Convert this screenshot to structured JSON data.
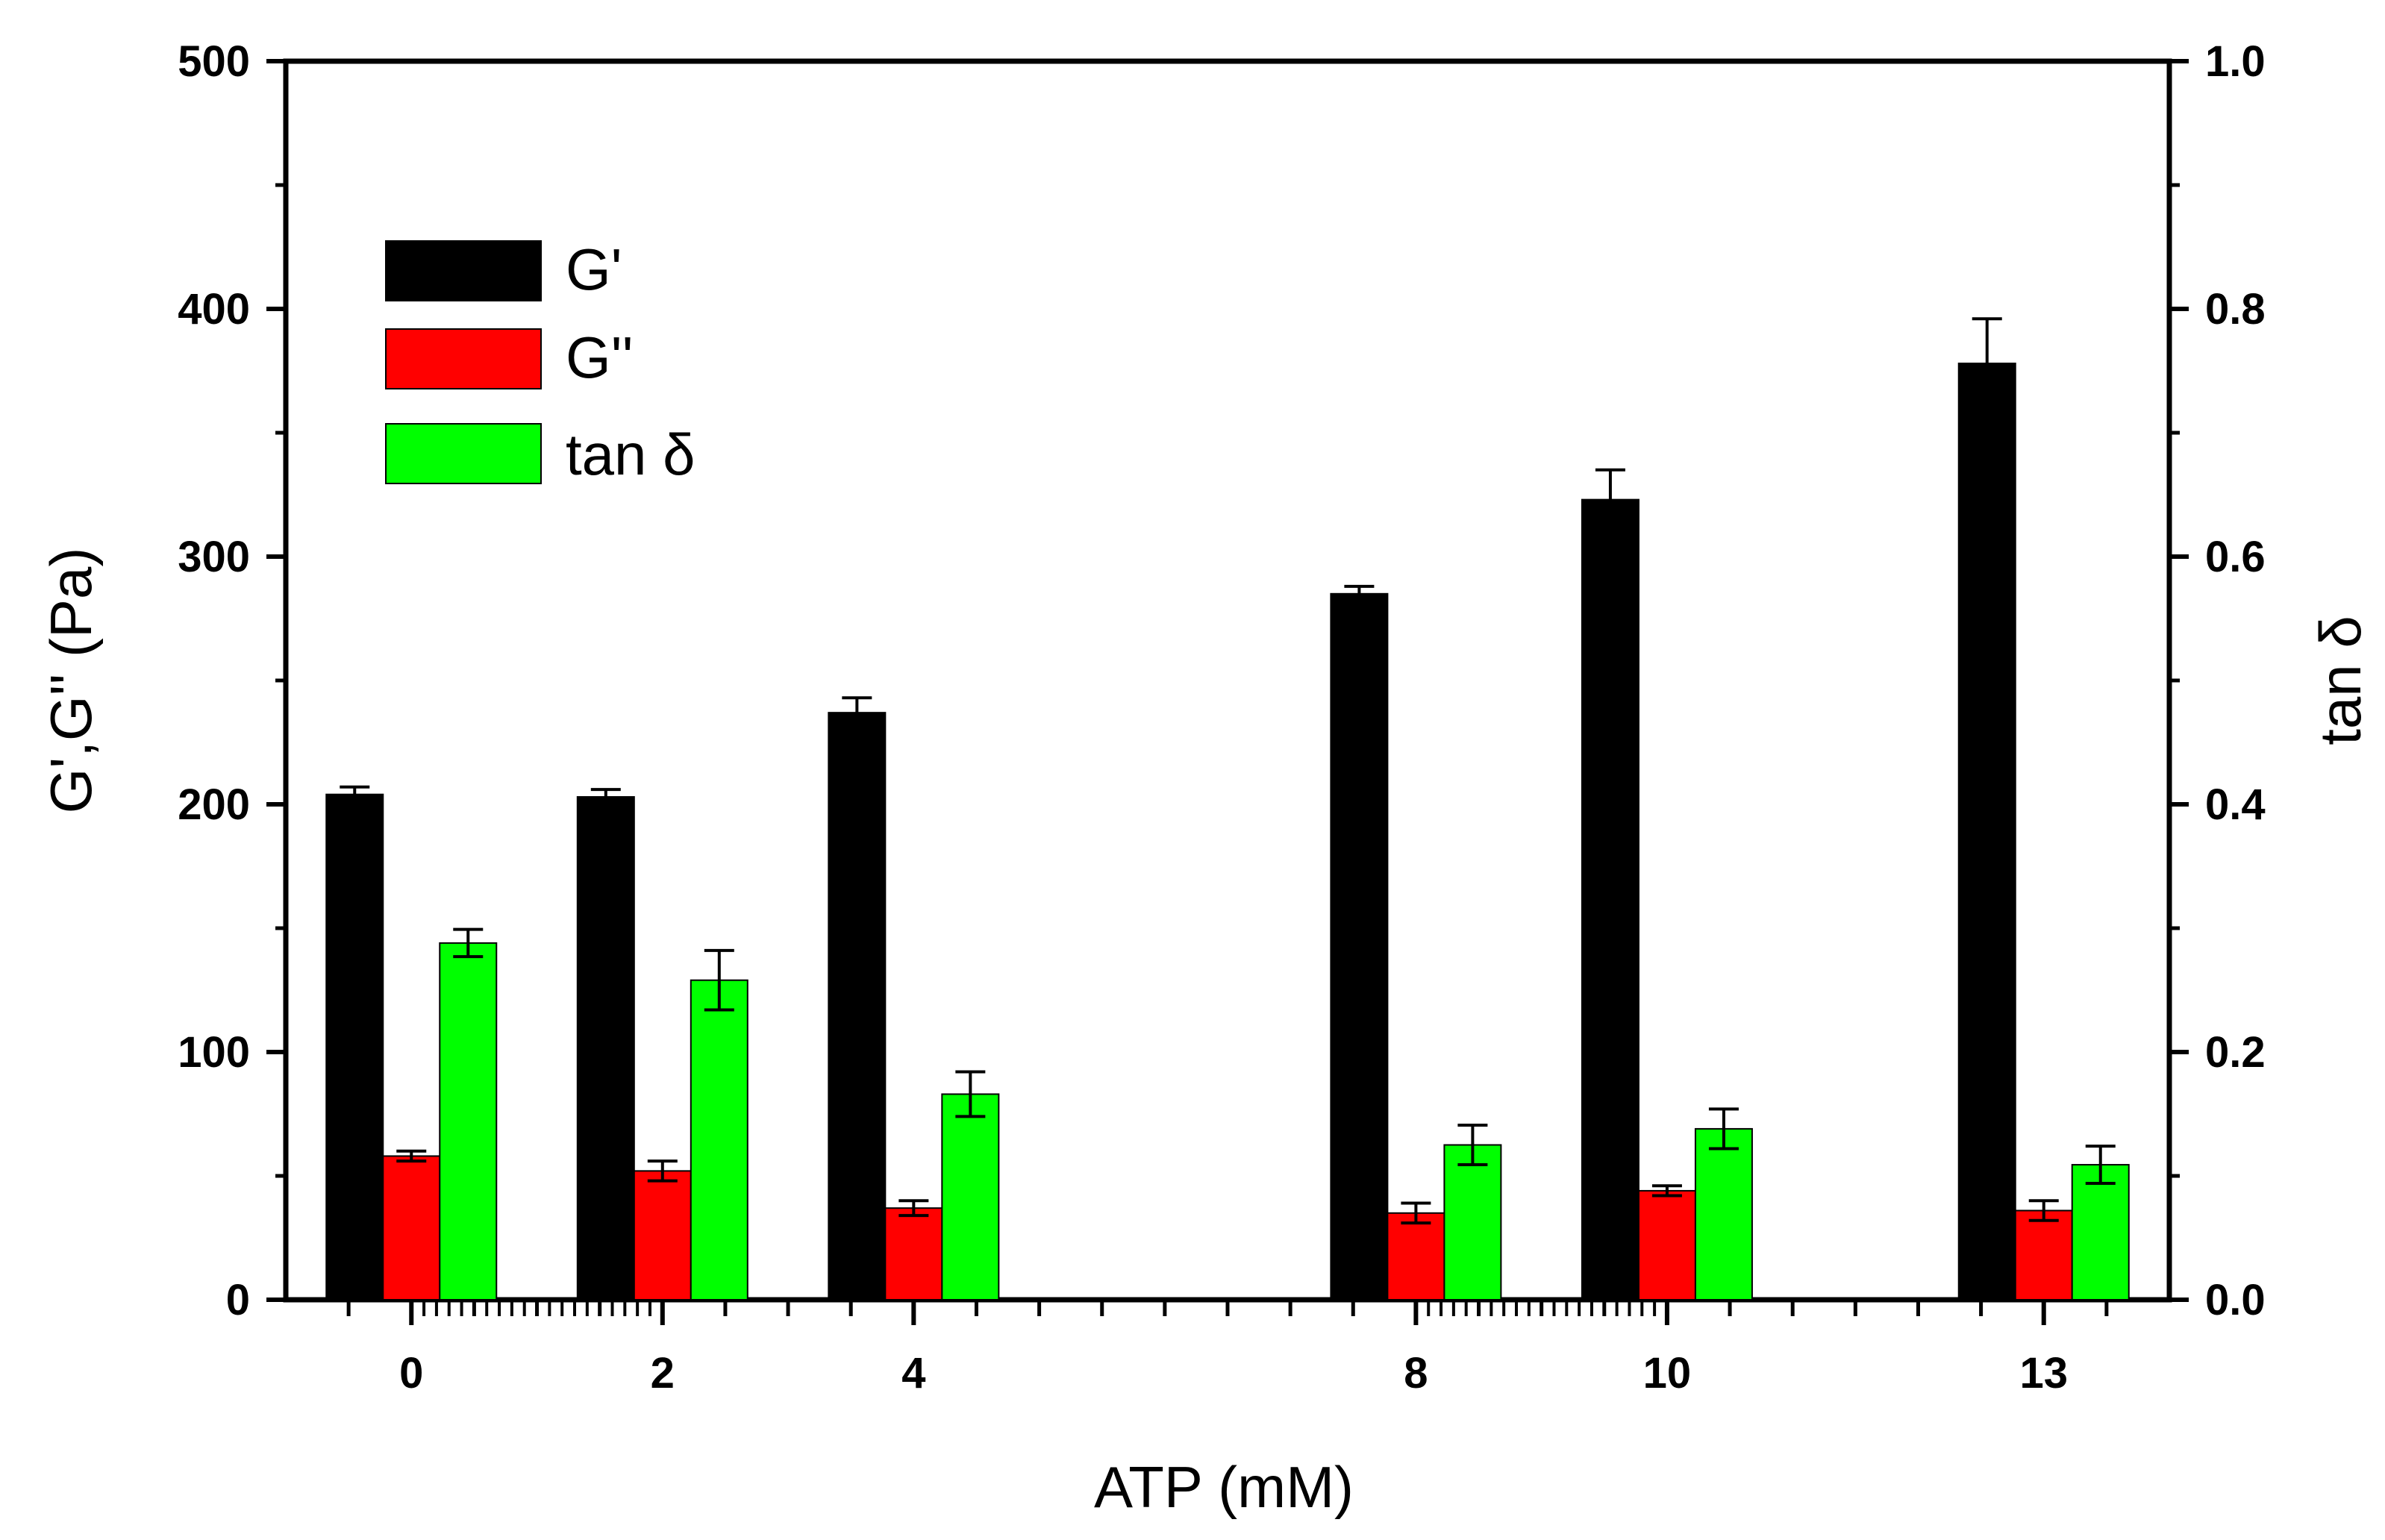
{
  "chart_data": {
    "type": "bar",
    "xlabel": "ATP (mM)",
    "ylabel": "G',G'' (Pa)",
    "y2label": "tan δ",
    "ylim": [
      0,
      500
    ],
    "y2lim": [
      0.0,
      1.0
    ],
    "y_ticks": [
      "0",
      "100",
      "200",
      "300",
      "400",
      "500"
    ],
    "y2_ticks": [
      "0.0",
      "0.2",
      "0.4",
      "0.6",
      "0.8",
      "1.0"
    ],
    "x_range": [
      -1.0,
      14.0
    ],
    "categories": [
      "0",
      "2",
      "4",
      "8",
      "10",
      "13"
    ],
    "x_values": [
      0,
      2,
      4,
      8,
      10,
      13
    ],
    "legend_position": "top-left",
    "series": [
      {
        "name": "G'",
        "axis": "left",
        "color": "#000000",
        "values": [
          204,
          203,
          237,
          285,
          323,
          378
        ],
        "errors": [
          3,
          3,
          6,
          3,
          12,
          18
        ]
      },
      {
        "name": "G''",
        "axis": "left",
        "color": "#ff0000",
        "values": [
          58,
          52,
          37,
          35,
          44,
          36
        ],
        "errors": [
          2,
          4,
          3,
          4,
          2,
          4
        ]
      },
      {
        "name": "tan δ",
        "axis": "right",
        "color": "#00ff00",
        "values": [
          0.288,
          0.258,
          0.166,
          0.125,
          0.138,
          0.109
        ],
        "errors": [
          0.011,
          0.024,
          0.018,
          0.016,
          0.016,
          0.015
        ]
      }
    ]
  }
}
